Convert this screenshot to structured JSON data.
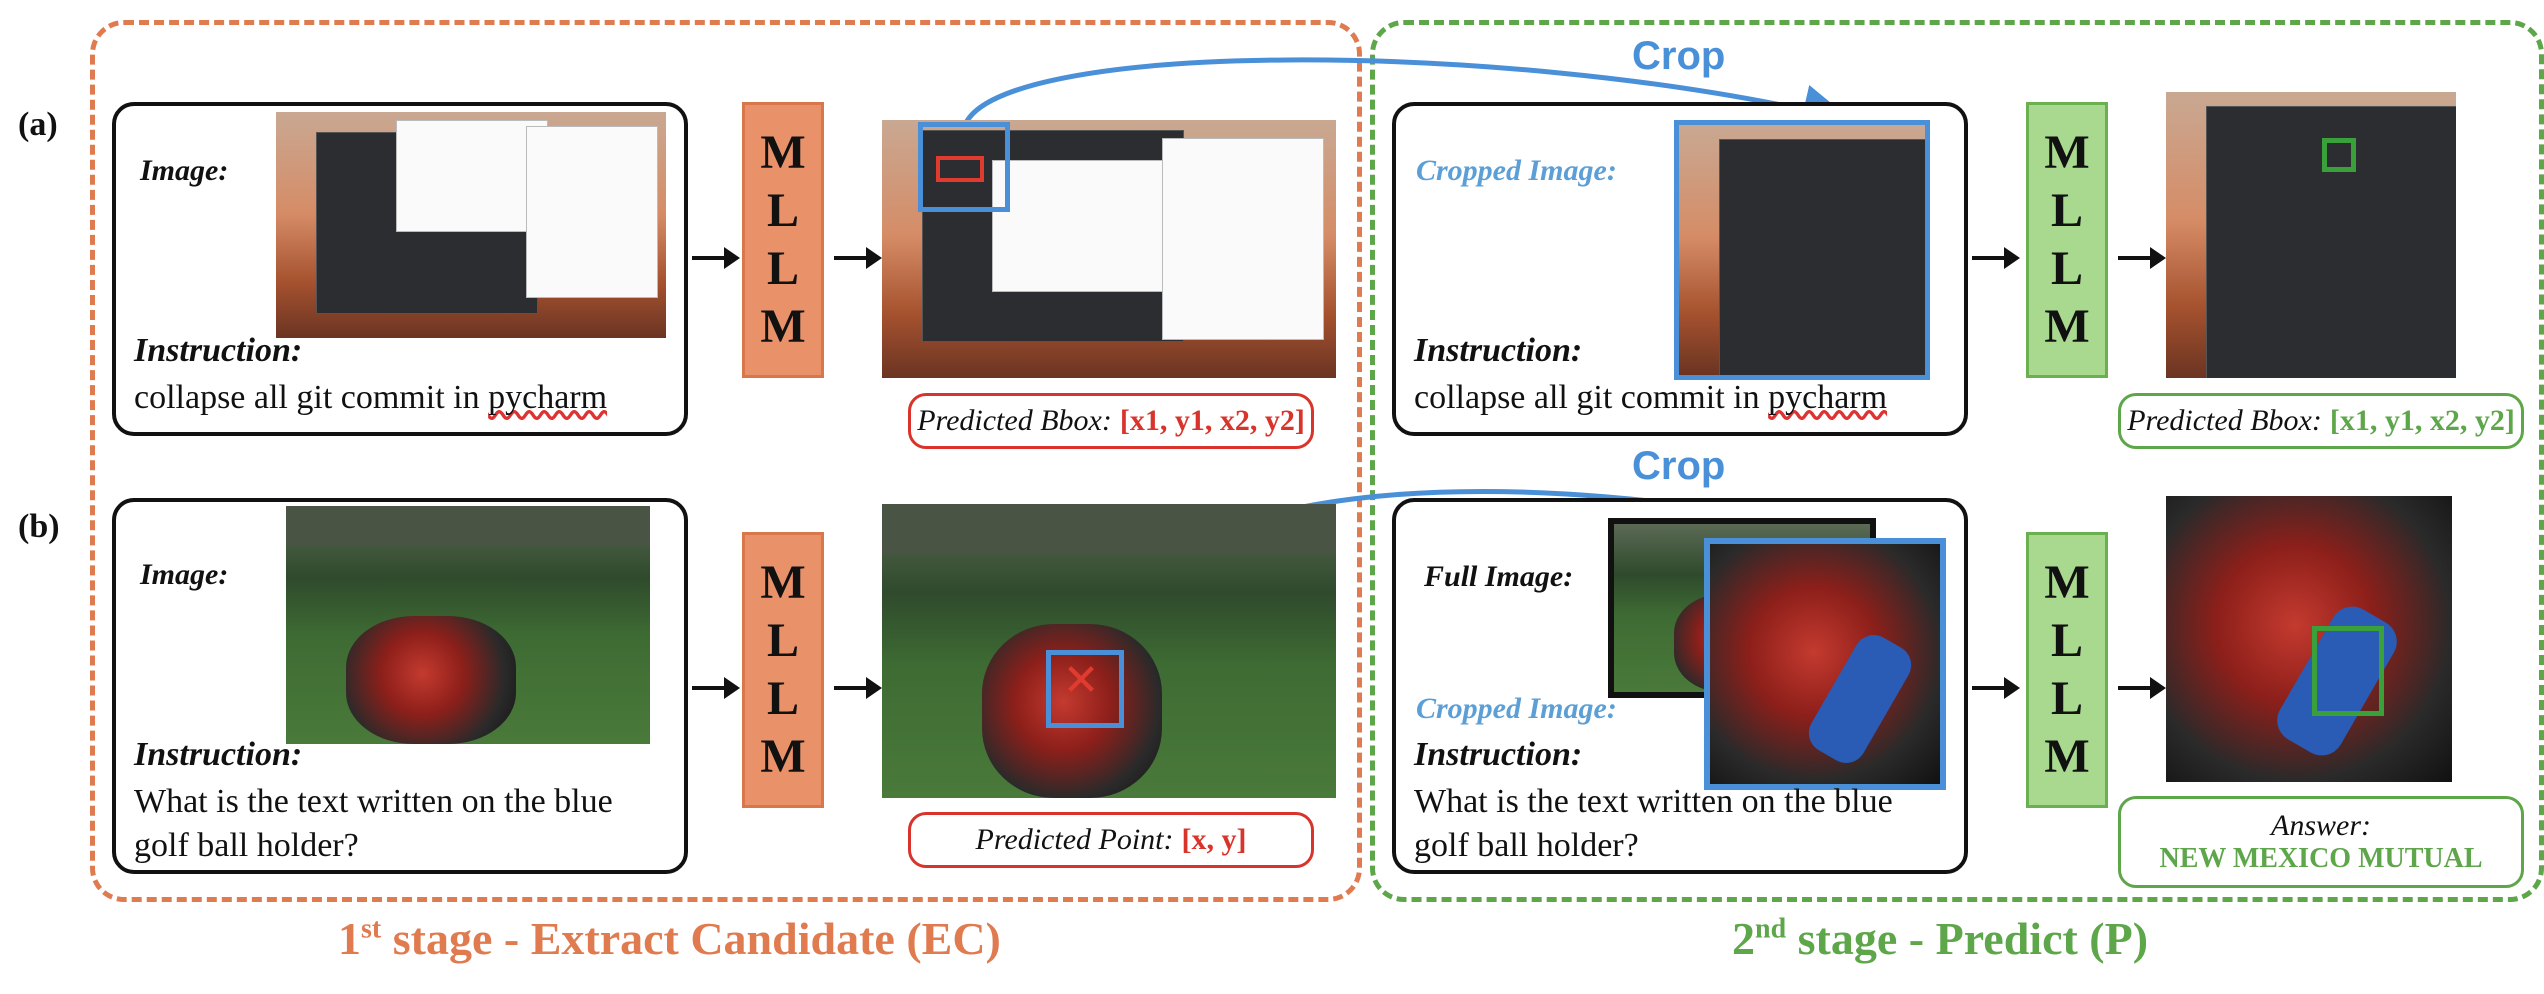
{
  "rows": [
    "(a)",
    "(b)"
  ],
  "crop_label": "Crop",
  "mllm_letters": [
    "M",
    "L",
    "L",
    "M"
  ],
  "row_a": {
    "image_label": "Image:",
    "instruction_label": "Instruction",
    "instruction_text": "collapse all git commit in",
    "instruction_word": "pycharm",
    "predicted_bbox_key": "Predicted Bbox:",
    "predicted_bbox_value": "[x1, y1, x2, y2]",
    "cropped_image_label": "Cropped Image:",
    "final_bbox_key": "Predicted Bbox:",
    "final_bbox_value": "[x1, y1, x2, y2]"
  },
  "row_b": {
    "image_label": "Image:",
    "instruction_label": "Instruction",
    "instruction_text_1": "What is the text written on the blue",
    "instruction_text_2": "golf ball holder?",
    "predicted_point_key": "Predicted Point:",
    "predicted_point_value": "[x, y]",
    "full_image_label": "Full Image:",
    "cropped_image_label": "Cropped Image:",
    "answer_key": "Answer:",
    "answer_value": "NEW MEXICO MUTUAL"
  },
  "stage1_title": {
    "ord": "1",
    "sup": "st",
    "rest": " stage - Extract Candidate (EC)"
  },
  "stage2_title": {
    "ord": "2",
    "sup": "nd",
    "rest": " stage - Predict (P)"
  },
  "colors": {
    "stage1": "#e07b4f",
    "stage2": "#5ea64a",
    "crop": "#4a90d9",
    "red": "#d9342b"
  }
}
